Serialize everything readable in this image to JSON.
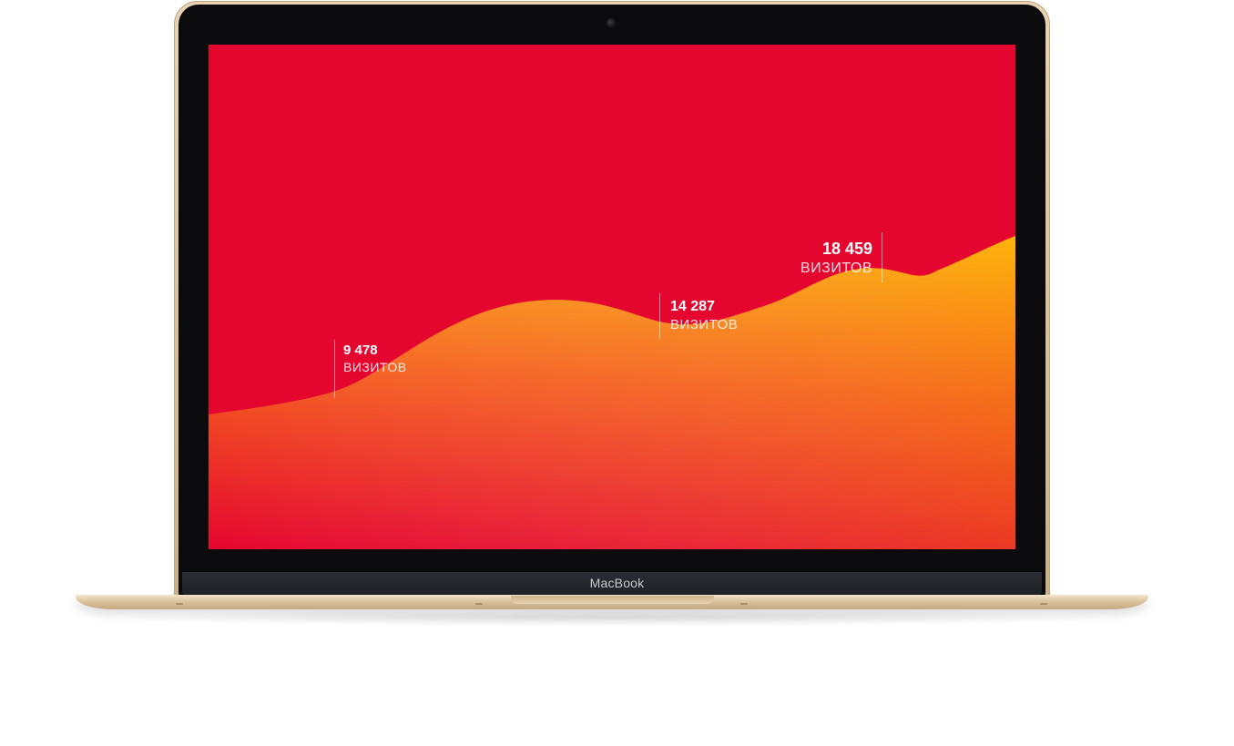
{
  "device": {
    "brand_label": "MacBook"
  },
  "colors": {
    "screen_background": "#e5062f",
    "gradient_top": "#fca90f",
    "gradient_mid": "#f45a1f",
    "gradient_bottom": "#e5062f"
  },
  "chart_data": {
    "type": "area",
    "series": [
      {
        "values": [
          9478,
          14287,
          18459
        ]
      }
    ],
    "annotations": [
      {
        "value": "9 478",
        "label": "ВИЗИТОВ"
      },
      {
        "value": "14 287",
        "label": "ВИЗИТОВ"
      },
      {
        "value": "18 459",
        "label": "ВИЗИТОВ"
      }
    ]
  }
}
